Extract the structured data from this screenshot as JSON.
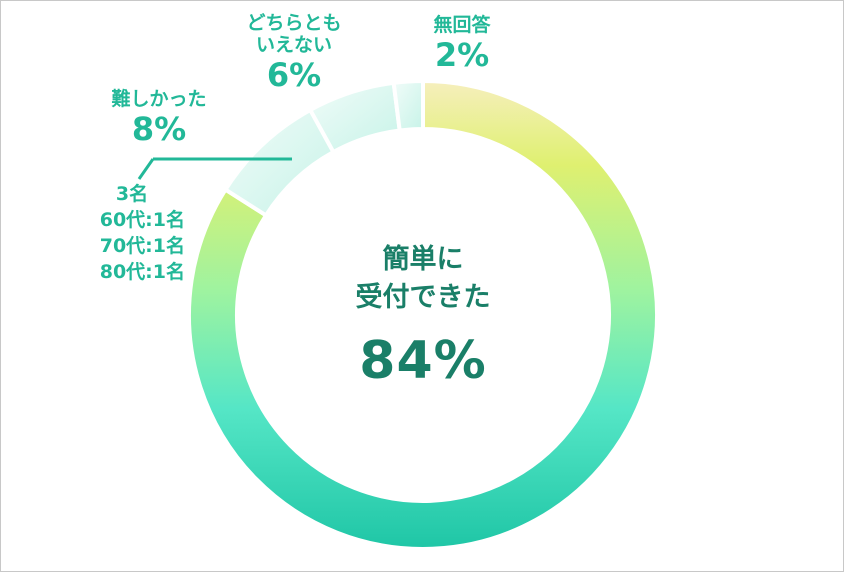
{
  "chart_data": {
    "type": "pie",
    "donut": true,
    "slices": [
      {
        "label": "簡単に受付できた",
        "value": 84,
        "pct_text": "84%"
      },
      {
        "label": "難しかった",
        "value": 8,
        "pct_text": "8%"
      },
      {
        "label": "どちらともいえない",
        "value": 6,
        "pct_text": "6%"
      },
      {
        "label": "無回答",
        "value": 2,
        "pct_text": "2%"
      }
    ],
    "center": {
      "line1": "簡単に",
      "line2": "受付できた",
      "value": "84%"
    },
    "labels": {
      "difficult": {
        "name": "難しかった",
        "pct": "8%"
      },
      "neutral": {
        "line1": "どちらとも",
        "line2": "いえない",
        "pct": "6%"
      },
      "no_answer": {
        "name": "無回答",
        "pct": "2%"
      }
    },
    "annotation": [
      "3名",
      "60代:1名",
      "70代:1名",
      "80代:1名"
    ],
    "colors": {
      "text": "#22b898",
      "center_text": "#1a7f68",
      "leader": "#22b898"
    }
  }
}
